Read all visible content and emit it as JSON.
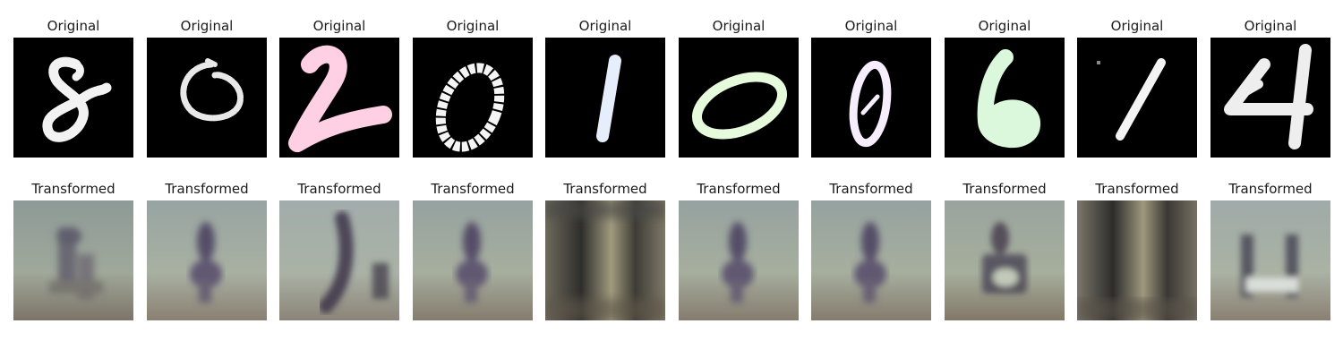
{
  "figure": {
    "original_title": "Original",
    "transformed_title": "Transformed",
    "pairs": [
      {
        "digit": "8",
        "stroke_color": "#f2f2f2",
        "transformed_glyph": "t-mixed"
      },
      {
        "digit": "0",
        "stroke_color": "#e8e8e8",
        "transformed_glyph": "t-4"
      },
      {
        "digit": "2",
        "stroke_color": "#ffd0e4",
        "transformed_glyph": "t-2"
      },
      {
        "digit": "0",
        "stroke_color": "#f4f4f4",
        "transformed_glyph": "t-4"
      },
      {
        "digit": "1",
        "stroke_color": "#e6eefc",
        "transformed_glyph": "t-1"
      },
      {
        "digit": "0",
        "stroke_color": "#e6fadc",
        "transformed_glyph": "t-4"
      },
      {
        "digit": "0",
        "stroke_color": "#f6eefc",
        "transformed_glyph": "t-4"
      },
      {
        "digit": "6",
        "stroke_color": "#dcf8dc",
        "transformed_glyph": "t-6"
      },
      {
        "digit": "1",
        "stroke_color": "#f4f4f4",
        "transformed_glyph": "t-1"
      },
      {
        "digit": "4",
        "stroke_color": "#eeeeee",
        "transformed_glyph": "t-4b"
      }
    ]
  }
}
